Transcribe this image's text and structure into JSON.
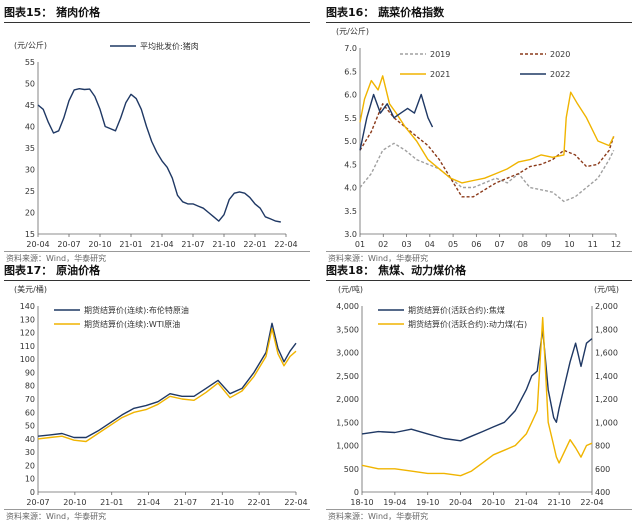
{
  "charts": [
    {
      "title": "图表15：  猪肉价格",
      "source": "资料来源：Wind，华泰研究",
      "chart_data": {
        "type": "line",
        "unit_label": "(元/公斤)",
        "ylim": [
          15,
          55
        ],
        "yticks": [
          "15",
          "20",
          "25",
          "30",
          "35",
          "40",
          "45",
          "50",
          "55"
        ],
        "xticks": [
          "20-04",
          "20-07",
          "20-10",
          "21-01",
          "21-04",
          "21-07",
          "21-10",
          "22-01",
          "22-04"
        ],
        "xrange": [
          0,
          24
        ],
        "legend_position": "top",
        "series": [
          {
            "name": "平均批发价:猪肉",
            "color": "#1f3864",
            "dash": "",
            "x": [
              0,
              0.5,
              1,
              1.5,
              2,
              2.5,
              3,
              3.5,
              4,
              4.5,
              5,
              5.5,
              6,
              6.5,
              7,
              7.5,
              8,
              8.5,
              9,
              9.5,
              10,
              10.5,
              11,
              11.5,
              12,
              12.5,
              13,
              13.5,
              14,
              14.5,
              15,
              15.5,
              16,
              16.5,
              17,
              17.5,
              18,
              18.5,
              19,
              19.5,
              20,
              20.5,
              21,
              21.5,
              22,
              22.5,
              23,
              23.5
            ],
            "y": [
              45,
              44,
              41,
              38.5,
              39,
              42,
              46,
              48.5,
              48.8,
              48.6,
              48.7,
              47,
              44,
              40,
              39.5,
              39,
              42,
              45.5,
              47.5,
              46.5,
              44,
              40,
              36.5,
              34,
              32,
              30.5,
              28,
              24,
              22.5,
              22,
              22,
              21.5,
              21,
              20,
              19,
              18,
              19.5,
              23,
              24.5,
              24.8,
              24.5,
              23.5,
              22,
              21,
              19,
              18.5,
              18,
              17.8
            ]
          }
        ]
      }
    },
    {
      "title": "图表16：  蔬菜价格指数",
      "source": "资料来源：Wind，华泰研究",
      "chart_data": {
        "type": "line",
        "unit_label": "(元/公斤)",
        "ylim": [
          3.0,
          7.0
        ],
        "yticks": [
          "3.0",
          "3.5",
          "4.0",
          "4.5",
          "5.0",
          "5.5",
          "6.0",
          "6.5",
          "7.0"
        ],
        "xticks": [
          "01",
          "02",
          "03",
          "04",
          "05",
          "06",
          "07",
          "08",
          "09",
          "10",
          "11",
          "12"
        ],
        "xrange": [
          1,
          12.3
        ],
        "legend_position": "top",
        "series": [
          {
            "name": "2019",
            "color": "#a0a0a0",
            "dash": "3,2",
            "x": [
              1,
              1.5,
              2,
              2.5,
              3,
              3.5,
              4,
              4.5,
              5,
              5.5,
              6,
              6.5,
              7,
              7.5,
              8,
              8.5,
              9,
              9.5,
              10,
              10.5,
              11,
              11.5,
              12,
              12.2
            ],
            "y": [
              4.0,
              4.3,
              4.8,
              4.95,
              4.8,
              4.6,
              4.5,
              4.4,
              4.2,
              4.0,
              4.0,
              4.1,
              4.2,
              4.1,
              4.3,
              4.0,
              3.95,
              3.9,
              3.7,
              3.8,
              4.0,
              4.2,
              4.6,
              4.8
            ]
          },
          {
            "name": "2020",
            "color": "#8b3a1a",
            "dash": "3,2",
            "x": [
              1,
              1.5,
              2,
              2.5,
              3,
              3.5,
              4,
              4.5,
              5,
              5.5,
              6,
              6.5,
              7,
              7.5,
              8,
              8.5,
              9,
              9.5,
              10,
              10.5,
              11,
              11.5,
              12,
              12.2
            ],
            "y": [
              4.8,
              5.2,
              5.8,
              5.5,
              5.3,
              5.1,
              4.9,
              4.6,
              4.2,
              3.8,
              3.8,
              3.95,
              4.1,
              4.2,
              4.3,
              4.45,
              4.5,
              4.6,
              4.8,
              4.7,
              4.45,
              4.5,
              4.8,
              5.1
            ]
          },
          {
            "name": "2021",
            "color": "#f0b400",
            "dash": "",
            "x": [
              1,
              1.2,
              1.5,
              1.8,
              2,
              2.3,
              2.6,
              3,
              3.5,
              4,
              4.5,
              5,
              5.5,
              6,
              6.5,
              7,
              7.5,
              8,
              8.5,
              9,
              9.5,
              10,
              10.1,
              10.3,
              10.6,
              11,
              11.5,
              12,
              12.2
            ],
            "y": [
              5.4,
              5.9,
              6.3,
              6.1,
              6.4,
              5.8,
              5.6,
              5.3,
              5.0,
              4.6,
              4.4,
              4.2,
              4.1,
              4.15,
              4.2,
              4.3,
              4.4,
              4.55,
              4.6,
              4.7,
              4.65,
              4.7,
              5.5,
              6.05,
              5.8,
              5.5,
              5.0,
              4.9,
              5.1
            ]
          },
          {
            "name": "2022",
            "color": "#1f3864",
            "dash": "",
            "x": [
              1,
              1.3,
              1.6,
              1.9,
              2.2,
              2.5,
              2.8,
              3.1,
              3.4,
              3.7,
              4,
              4.2
            ],
            "y": [
              4.8,
              5.5,
              6.0,
              5.6,
              5.8,
              5.5,
              5.6,
              5.7,
              5.6,
              6.0,
              5.5,
              5.3
            ]
          }
        ]
      }
    },
    {
      "title": "图表17：  原油价格",
      "source": "资料来源：Wind，华泰研究",
      "chart_data": {
        "type": "line",
        "unit_label": "(美元/桶)",
        "ylim": [
          0,
          140
        ],
        "yticks": [
          "0",
          "10",
          "20",
          "30",
          "40",
          "50",
          "60",
          "70",
          "80",
          "90",
          "100",
          "110",
          "120",
          "130",
          "140"
        ],
        "xticks": [
          "20-07",
          "20-10",
          "21-01",
          "21-04",
          "21-07",
          "21-10",
          "22-01",
          "22-04"
        ],
        "xrange": [
          0,
          21.5
        ],
        "legend_position": "top-left",
        "series": [
          {
            "name": "期货结算价(连续):布伦特原油",
            "color": "#1f3864",
            "dash": "",
            "x": [
              0,
              1,
              2,
              3,
              4,
              5,
              6,
              7,
              8,
              9,
              10,
              11,
              12,
              13,
              14,
              15,
              16,
              17,
              18,
              19,
              19.5,
              20,
              20.5,
              21,
              21.5
            ],
            "y": [
              42,
              43,
              44,
              41,
              41,
              46,
              52,
              58,
              63,
              65,
              68,
              74,
              72,
              72,
              78,
              84,
              74,
              78,
              90,
              105,
              127,
              108,
              98,
              106,
              112
            ]
          },
          {
            "name": "期货结算价(连续):WTI原油",
            "color": "#f0b400",
            "dash": "",
            "x": [
              0,
              1,
              2,
              3,
              4,
              5,
              6,
              7,
              8,
              9,
              10,
              11,
              12,
              13,
              14,
              15,
              16,
              17,
              18,
              19,
              19.5,
              20,
              20.5,
              21,
              21.5
            ],
            "y": [
              40,
              41,
              42,
              39,
              38,
              44,
              50,
              56,
              60,
              62,
              66,
              72,
              70,
              69,
              75,
              82,
              71,
              76,
              87,
              102,
              123,
              104,
              95,
              102,
              106
            ]
          }
        ]
      }
    },
    {
      "title": "图表18：  焦煤、动力煤价格",
      "source": "资料来源：Wind，华泰研究",
      "chart_data": {
        "type": "line",
        "unit_label": "(元/吨)",
        "unit_label_right": "(元/吨)",
        "ylim": [
          0,
          4000
        ],
        "ylim_right": [
          400,
          2000
        ],
        "yticks": [
          "0",
          "500",
          "1,000",
          "1,500",
          "2,000",
          "2,500",
          "3,000",
          "3,500",
          "4,000"
        ],
        "yticks_right": [
          "400",
          "600",
          "800",
          "1,000",
          "1,200",
          "1,400",
          "1,600",
          "1,800",
          "2,000"
        ],
        "xticks": [
          "18-10",
          "19-04",
          "19-10",
          "20-04",
          "20-10",
          "21-04",
          "21-10",
          "22-04"
        ],
        "xrange": [
          0,
          42
        ],
        "legend_position": "top-left",
        "series": [
          {
            "name": "期货结算价(活跃合约):焦煤",
            "color": "#1f3864",
            "dash": "",
            "axis": "left",
            "x": [
              0,
              3,
              6,
              9,
              12,
              15,
              18,
              20,
              22,
              24,
              26,
              28,
              30,
              31,
              32,
              33,
              34,
              35,
              35.5,
              36,
              37,
              38,
              39,
              40,
              41,
              42
            ],
            "y": [
              1250,
              1300,
              1280,
              1350,
              1250,
              1150,
              1100,
              1200,
              1300,
              1400,
              1500,
              1750,
              2200,
              2500,
              2600,
              3500,
              2200,
              1600,
              1500,
              1800,
              2300,
              2800,
              3200,
              2700,
              3200,
              3300
            ]
          },
          {
            "name": "期货结算价(活跃合约):动力煤(右)",
            "color": "#f0b400",
            "dash": "",
            "axis": "right",
            "x": [
              0,
              3,
              6,
              9,
              12,
              15,
              18,
              20,
              22,
              24,
              26,
              28,
              30,
              31,
              32,
              33,
              34,
              35,
              35.5,
              36,
              37,
              38,
              39,
              40,
              41,
              42
            ],
            "y": [
              630,
              600,
              600,
              580,
              560,
              560,
              540,
              580,
              650,
              720,
              760,
              800,
              900,
              1000,
              1100,
              1900,
              1000,
              800,
              700,
              650,
              750,
              850,
              780,
              700,
              800,
              820
            ]
          }
        ]
      }
    }
  ]
}
